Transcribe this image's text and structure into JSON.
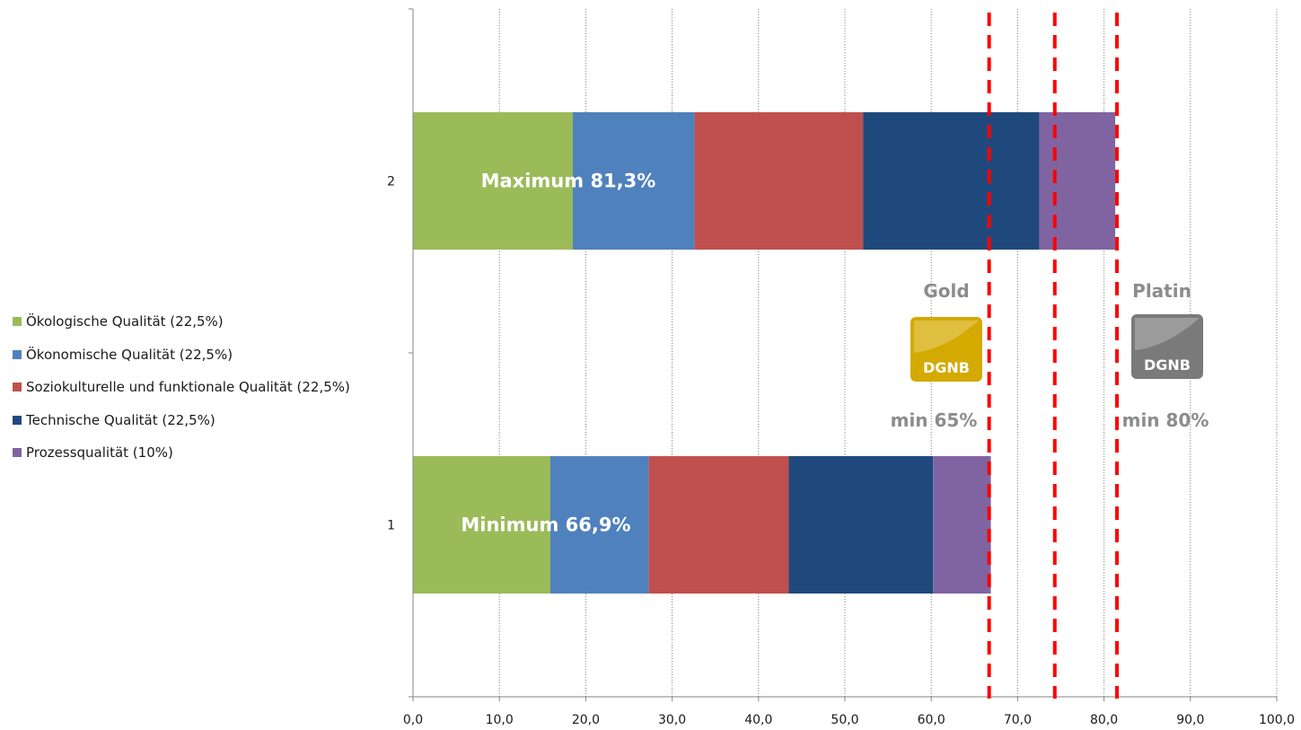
{
  "chart_data": {
    "type": "bar",
    "orientation": "horizontal",
    "stacked": true,
    "categories": [
      "1",
      "2"
    ],
    "series": [
      {
        "name": "Ökologische Qualität (22,5%)",
        "color": "#9bbb59",
        "values": [
          15.9,
          18.5
        ]
      },
      {
        "name": "Ökonomische Qualität (22,5%)",
        "color": "#4f81bd",
        "values": [
          11.4,
          14.1
        ]
      },
      {
        "name": "Soziokulturelle und funktionale Qualität (22,5%)",
        "color": "#c0504d",
        "values": [
          16.2,
          19.5
        ]
      },
      {
        "name": "Technische Qualität (22,5%)",
        "color": "#1f497d",
        "values": [
          16.7,
          20.4
        ]
      },
      {
        "name": "Prozessqualität (10%)",
        "color": "#8064a2",
        "values": [
          6.7,
          8.8
        ]
      }
    ],
    "bar_labels": [
      "Minimum 66,9%",
      "Maximum 81,3%"
    ],
    "xlim": [
      0,
      100
    ],
    "x_ticks": [
      "0,0",
      "10,0",
      "20,0",
      "30,0",
      "40,0",
      "50,0",
      "60,0",
      "70,0",
      "80,0",
      "90,0",
      "100,0"
    ],
    "grid": "vertical dotted",
    "legend_position": "left",
    "reference_lines": [
      {
        "value": 66.7,
        "color": "#ff0000",
        "style": "dashed"
      },
      {
        "value": 74.3,
        "color": "#ff0000",
        "style": "dashed"
      },
      {
        "value": 81.5,
        "color": "#ff0000",
        "style": "dashed"
      }
    ],
    "badges": [
      {
        "name": "Gold",
        "logo_text": "DGNB",
        "min": "min 65%",
        "color": "#d4a900"
      },
      {
        "name": "Platin",
        "logo_text": "DGNB",
        "min": "min 80%",
        "color": "#7a7a7a"
      }
    ]
  }
}
